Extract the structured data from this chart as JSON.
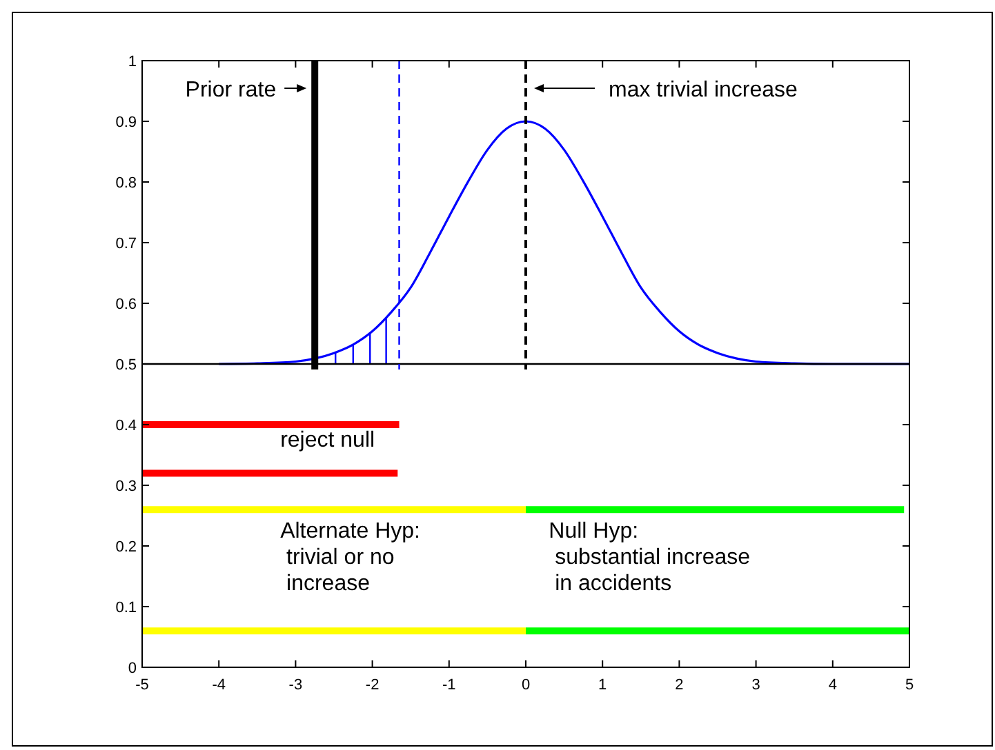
{
  "chart_data": {
    "type": "line",
    "xlim": [
      -5,
      5
    ],
    "ylim": [
      0,
      1
    ],
    "xticks": [
      -5,
      -4,
      -3,
      -2,
      -1,
      0,
      1,
      2,
      3,
      4,
      5
    ],
    "yticks": [
      0,
      0.1,
      0.2,
      0.3,
      0.4,
      0.5,
      0.6,
      0.7,
      0.8,
      0.9,
      1
    ],
    "grid": false,
    "series": [
      {
        "color": "#0000ff",
        "x": [
          -4,
          -3.5,
          -3,
          -2.75,
          -2.5,
          -2.25,
          -2,
          -1.75,
          -1.5,
          -1.25,
          -1,
          -0.75,
          -0.5,
          -0.25,
          0,
          0.25,
          0.5,
          0.75,
          1,
          1.25,
          1.5,
          1.75,
          2,
          2.25,
          2.5,
          2.75,
          3,
          3.5,
          4,
          5
        ],
        "values": [
          0.5,
          0.501,
          0.504,
          0.509,
          0.518,
          0.532,
          0.554,
          0.586,
          0.626,
          0.683,
          0.743,
          0.801,
          0.853,
          0.888,
          0.9,
          0.888,
          0.853,
          0.801,
          0.743,
          0.683,
          0.626,
          0.586,
          0.554,
          0.532,
          0.518,
          0.509,
          0.504,
          0.501,
          0.5,
          0.5
        ]
      },
      {
        "type": "bar",
        "color": "#0000ff",
        "x": [
          -2.48,
          -2.25,
          -2.03,
          -1.82
        ],
        "base": [
          0.5,
          0.5,
          0.5,
          0.5
        ],
        "values": [
          0.02,
          0.032,
          0.052,
          0.076
        ]
      },
      {
        "color": "#ff0000",
        "x": [
          -5,
          -1.65
        ],
        "values": [
          0.4,
          0.4
        ]
      },
      {
        "color": "#ff0000",
        "x": [
          -5,
          -1.67
        ],
        "values": [
          0.32,
          0.32
        ]
      },
      {
        "color": "#ffff00",
        "x": [
          -5,
          0
        ],
        "values": [
          0.26,
          0.26
        ]
      },
      {
        "color": "#00ff00",
        "x": [
          0,
          4.93
        ],
        "values": [
          0.26,
          0.26
        ]
      },
      {
        "color": "#ffff00",
        "x": [
          -5,
          0
        ],
        "values": [
          0.06,
          0.06
        ]
      },
      {
        "color": "#00ff00",
        "x": [
          0,
          5
        ],
        "values": [
          0.06,
          0.06
        ]
      }
    ],
    "ref_lines": [
      {
        "axis": "y",
        "value": 0.5,
        "label": null,
        "color": "#000000",
        "line_style": "solid"
      },
      {
        "axis": "x",
        "value": -2.75,
        "label": "Prior rate",
        "color": "#000000",
        "line_style": "solid"
      },
      {
        "axis": "x",
        "value": -1.65,
        "label": null,
        "color": "#0000ff",
        "line_style": "dashed"
      },
      {
        "axis": "x",
        "value": 0,
        "label": "max trivial increase",
        "color": "#000000",
        "line_style": "dashed"
      }
    ],
    "annotations": [
      "reject null",
      "Alternate Hyp:\n trivial or no\n increase",
      "Null Hyp:\n substantial increase\n in accidents"
    ]
  }
}
